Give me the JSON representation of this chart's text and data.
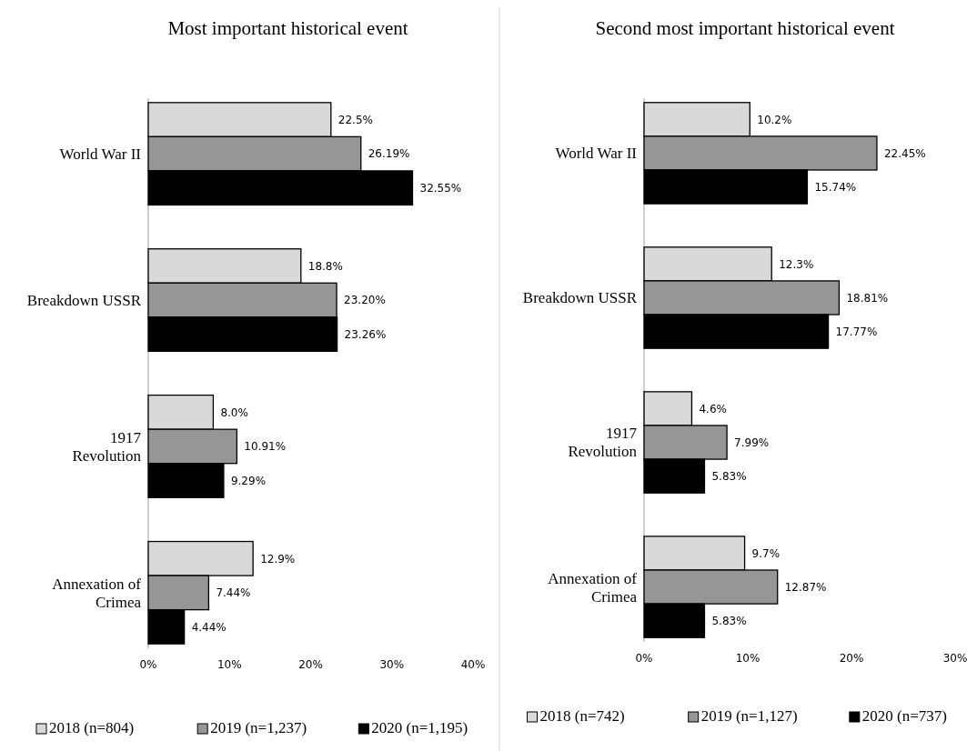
{
  "chart_data": [
    {
      "type": "bar",
      "orientation": "horizontal",
      "title": "Most important historical event",
      "categories": [
        "World War II",
        "Breakdown USSR",
        "1917 Revolution",
        "Annexation of Crimea"
      ],
      "xlim": [
        0,
        40
      ],
      "xticks": [
        {
          "value": 0,
          "label": "0%"
        },
        {
          "value": 10,
          "label": "10%"
        },
        {
          "value": 20,
          "label": "20%"
        },
        {
          "value": 30,
          "label": "30%"
        },
        {
          "value": 40,
          "label": "40%"
        }
      ],
      "legend": "bottom",
      "grid": false,
      "series": [
        {
          "name": "2018 (n=804)",
          "color": "#d9d9d9",
          "values": [
            22.5,
            18.8,
            8.0,
            12.9
          ],
          "value_labels": [
            "22.5%",
            "18.8%",
            "8.0%",
            "12.9%"
          ]
        },
        {
          "name": "2019 (n=1,237)",
          "color": "#969696",
          "values": [
            26.19,
            23.2,
            10.91,
            7.44
          ],
          "value_labels": [
            "26.19%",
            "23.20%",
            "10.91%",
            "7.44%"
          ]
        },
        {
          "name": "2020 (n=1,195)",
          "color": "#000000",
          "values": [
            32.55,
            23.26,
            9.29,
            4.44
          ],
          "value_labels": [
            "32.55%",
            "23.26%",
            "9.29%",
            "4.44%"
          ]
        }
      ]
    },
    {
      "type": "bar",
      "orientation": "horizontal",
      "title": "Second most important historical event",
      "categories": [
        "World War II",
        "Breakdown USSR",
        "1917 Revolution",
        "Annexation of Crimea"
      ],
      "xlim": [
        0,
        30
      ],
      "xticks": [
        {
          "value": 0,
          "label": "0%"
        },
        {
          "value": 10,
          "label": "10%"
        },
        {
          "value": 20,
          "label": "20%"
        },
        {
          "value": 30,
          "label": "30%"
        }
      ],
      "legend": "bottom",
      "grid": false,
      "series": [
        {
          "name": "2018 (n=742)",
          "color": "#d9d9d9",
          "values": [
            10.2,
            12.3,
            4.6,
            9.7
          ],
          "value_labels": [
            "10.2%",
            "12.3%",
            "4.6%",
            "9.7%"
          ]
        },
        {
          "name": "2019 (n=1,127)",
          "color": "#969696",
          "values": [
            22.45,
            18.81,
            7.99,
            12.87
          ],
          "value_labels": [
            "22.45%",
            "18.81%",
            "7.99%",
            "12.87%"
          ]
        },
        {
          "name": "2020 (n=737)",
          "color": "#000000",
          "values": [
            15.74,
            17.77,
            5.83,
            5.83
          ],
          "value_labels": [
            "15.74%",
            "17.77%",
            "5.83%",
            "5.83%"
          ]
        }
      ]
    }
  ]
}
